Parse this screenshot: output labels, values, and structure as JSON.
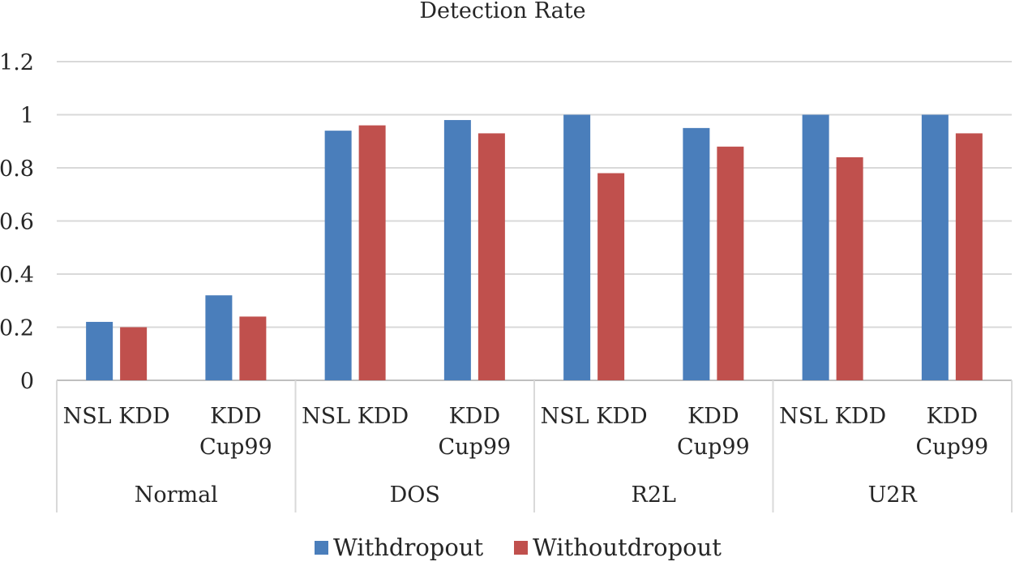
{
  "chart_data": {
    "type": "bar",
    "title": "Detection Rate",
    "groups": [
      {
        "label": "Normal",
        "categories": [
          [
            "NSL KDD"
          ],
          [
            "KDD",
            "Cup99"
          ]
        ]
      },
      {
        "label": "DOS",
        "categories": [
          [
            "NSL KDD"
          ],
          [
            "KDD",
            "Cup99"
          ]
        ]
      },
      {
        "label": "R2L",
        "categories": [
          [
            "NSL KDD"
          ],
          [
            "KDD",
            "Cup99"
          ]
        ]
      },
      {
        "label": "U2R",
        "categories": [
          [
            "NSL KDD"
          ],
          [
            "KDD",
            "Cup99"
          ]
        ]
      }
    ],
    "series": [
      {
        "name": "Withdropout",
        "color": "#4a7ebb",
        "values": [
          0.22,
          0.32,
          0.94,
          0.98,
          1.0,
          0.95,
          1.0,
          1.0
        ]
      },
      {
        "name": "Withoutdropout",
        "color": "#c0504d",
        "values": [
          0.2,
          0.24,
          0.96,
          0.93,
          0.78,
          0.88,
          0.84,
          0.93
        ]
      }
    ],
    "yticks": [
      "0",
      "0.2",
      "0.4",
      "0.6",
      "0.8",
      "1",
      "1.2"
    ],
    "ylim": [
      0,
      1.2
    ],
    "grid": true,
    "legend": "bottom"
  }
}
